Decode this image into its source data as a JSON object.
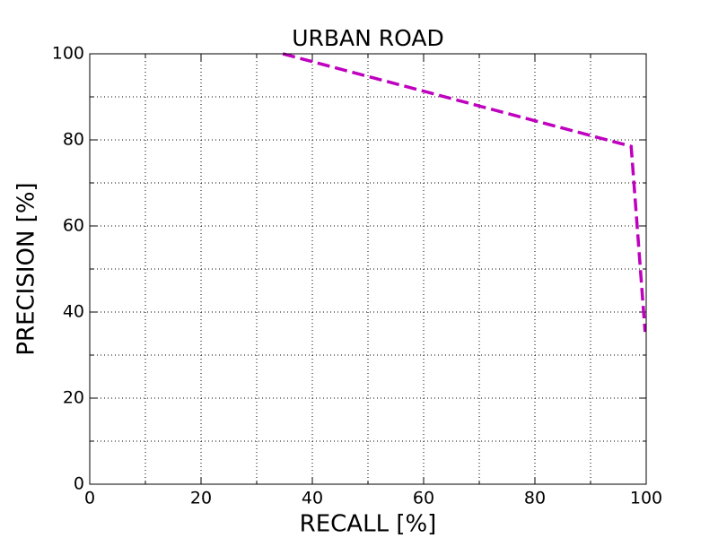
{
  "chart_data": {
    "type": "line",
    "title": "URBAN ROAD",
    "xlabel": "RECALL [%]",
    "ylabel": "PRECISION [%]",
    "x": [
      34.7,
      97.3,
      99.8
    ],
    "series": [
      {
        "name": "URBAN ROAD",
        "color": "#bf00bf",
        "values": [
          100,
          78.5,
          35.4
        ]
      }
    ],
    "xlim": [
      0,
      100
    ],
    "ylim": [
      0,
      100
    ],
    "xticks": [
      0,
      20,
      40,
      60,
      80,
      100
    ],
    "yticks": [
      0,
      20,
      40,
      60,
      80,
      100
    ],
    "xminorticks": [
      10,
      30,
      50,
      70,
      90
    ],
    "yminorticks": [
      10,
      30,
      50,
      70,
      90
    ],
    "grid": true,
    "dashed": true
  }
}
